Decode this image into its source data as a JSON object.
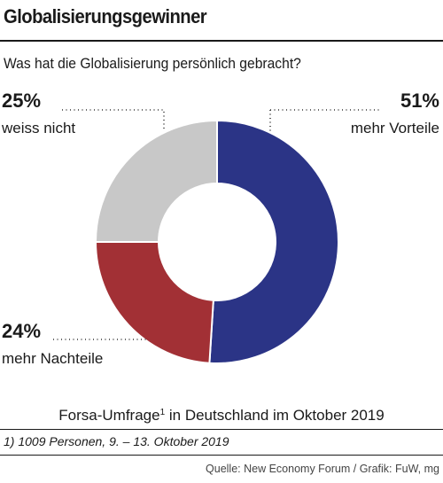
{
  "header": {
    "title": "Globalisierungsgewinner",
    "subtitle": "Was hat die Globalisierung persönlich gebracht?"
  },
  "chart_data": {
    "type": "pie",
    "donut": true,
    "title": "Globalisierungsgewinner",
    "subtitle": "Was hat die Globalisierung persönlich gebracht?",
    "categories": [
      "mehr Vorteile",
      "mehr Nachteile",
      "weiss nicht"
    ],
    "values": [
      51,
      24,
      25
    ],
    "value_labels": [
      "51%",
      "24%",
      "25%"
    ],
    "colors": [
      "#2b3486",
      "#a23035",
      "#c8c8c8"
    ],
    "unit": "%"
  },
  "footer": {
    "caption": "Forsa-Umfrage",
    "caption_sup": "1",
    "caption_rest": " in Deutschland im Oktober 2019",
    "footnote": "1) 1009 Personen, 9. – 13. Oktober 2019",
    "source": "Quelle: New Economy Forum / Grafik: FuW, mg"
  }
}
